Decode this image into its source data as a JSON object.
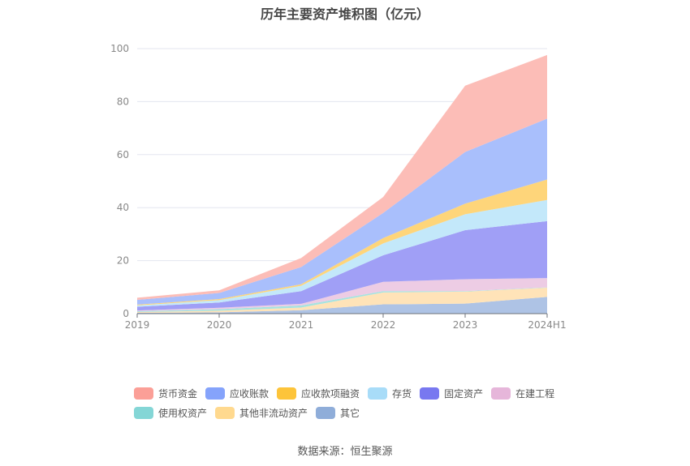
{
  "chart_data": {
    "type": "area",
    "stacked": true,
    "title": "历年主要资产堆积图（亿元）",
    "xlabel": "",
    "ylabel": "",
    "categories": [
      "2019",
      "2020",
      "2021",
      "2022",
      "2023",
      "2024H1"
    ],
    "ylim": [
      0,
      100
    ],
    "yticks": [
      0,
      20,
      40,
      60,
      80,
      100
    ],
    "grid": true,
    "legend_position": "bottom",
    "series": [
      {
        "name": "其它",
        "color": "#8fadd9",
        "fill": "#aec3e5",
        "values": [
          0.3,
          0.5,
          1.3,
          3.5,
          3.8,
          6.3
        ]
      },
      {
        "name": "其他非流动资产",
        "color": "#ffd98f",
        "fill": "#ffe3b8",
        "values": [
          0.3,
          0.6,
          1.0,
          4.5,
          4.5,
          3.5
        ]
      },
      {
        "name": "使用权资产",
        "color": "#84d6d6",
        "fill": "#a7e3e0",
        "values": [
          0.3,
          0.6,
          0.8,
          0.5,
          0.2,
          0.1
        ]
      },
      {
        "name": "在建工程",
        "color": "#e6b6da",
        "fill": "#edcce4",
        "values": [
          0.3,
          0.5,
          0.6,
          3.5,
          4.5,
          3.5
        ]
      },
      {
        "name": "固定资产",
        "color": "#7878f0",
        "fill": "#a09ff6",
        "values": [
          1.4,
          2.0,
          4.8,
          10.0,
          18.5,
          21.5
        ]
      },
      {
        "name": "存货",
        "color": "#a8dcf8",
        "fill": "#c3e8fa",
        "values": [
          0.5,
          0.9,
          2.0,
          4.5,
          6.0,
          8.0
        ]
      },
      {
        "name": "应收款项融资",
        "color": "#fdc43a",
        "fill": "#fed57a",
        "values": [
          0.3,
          0.4,
          0.6,
          2.0,
          4.0,
          7.7
        ]
      },
      {
        "name": "应收账款",
        "color": "#85a3fb",
        "fill": "#a9bffc",
        "values": [
          1.8,
          2.3,
          6.5,
          9.5,
          19.5,
          23.0
        ]
      },
      {
        "name": "货币资金",
        "color": "#fb9f97",
        "fill": "#fcbdb7",
        "values": [
          0.8,
          1.0,
          3.4,
          6.0,
          25.0,
          24.0
        ]
      }
    ]
  },
  "legend": [
    {
      "label": "货币资金",
      "color": "#fb9f97"
    },
    {
      "label": "应收账款",
      "color": "#85a3fb"
    },
    {
      "label": "应收款项融资",
      "color": "#fdc43a"
    },
    {
      "label": "存货",
      "color": "#a8dcf8"
    },
    {
      "label": "固定资产",
      "color": "#7878f0"
    },
    {
      "label": "在建工程",
      "color": "#e6b6da"
    },
    {
      "label": "使用权资产",
      "color": "#84d6d6"
    },
    {
      "label": "其他非流动资产",
      "color": "#ffd98f"
    },
    {
      "label": "其它",
      "color": "#8fadd9"
    }
  ],
  "source": "数据来源：恒生聚源"
}
